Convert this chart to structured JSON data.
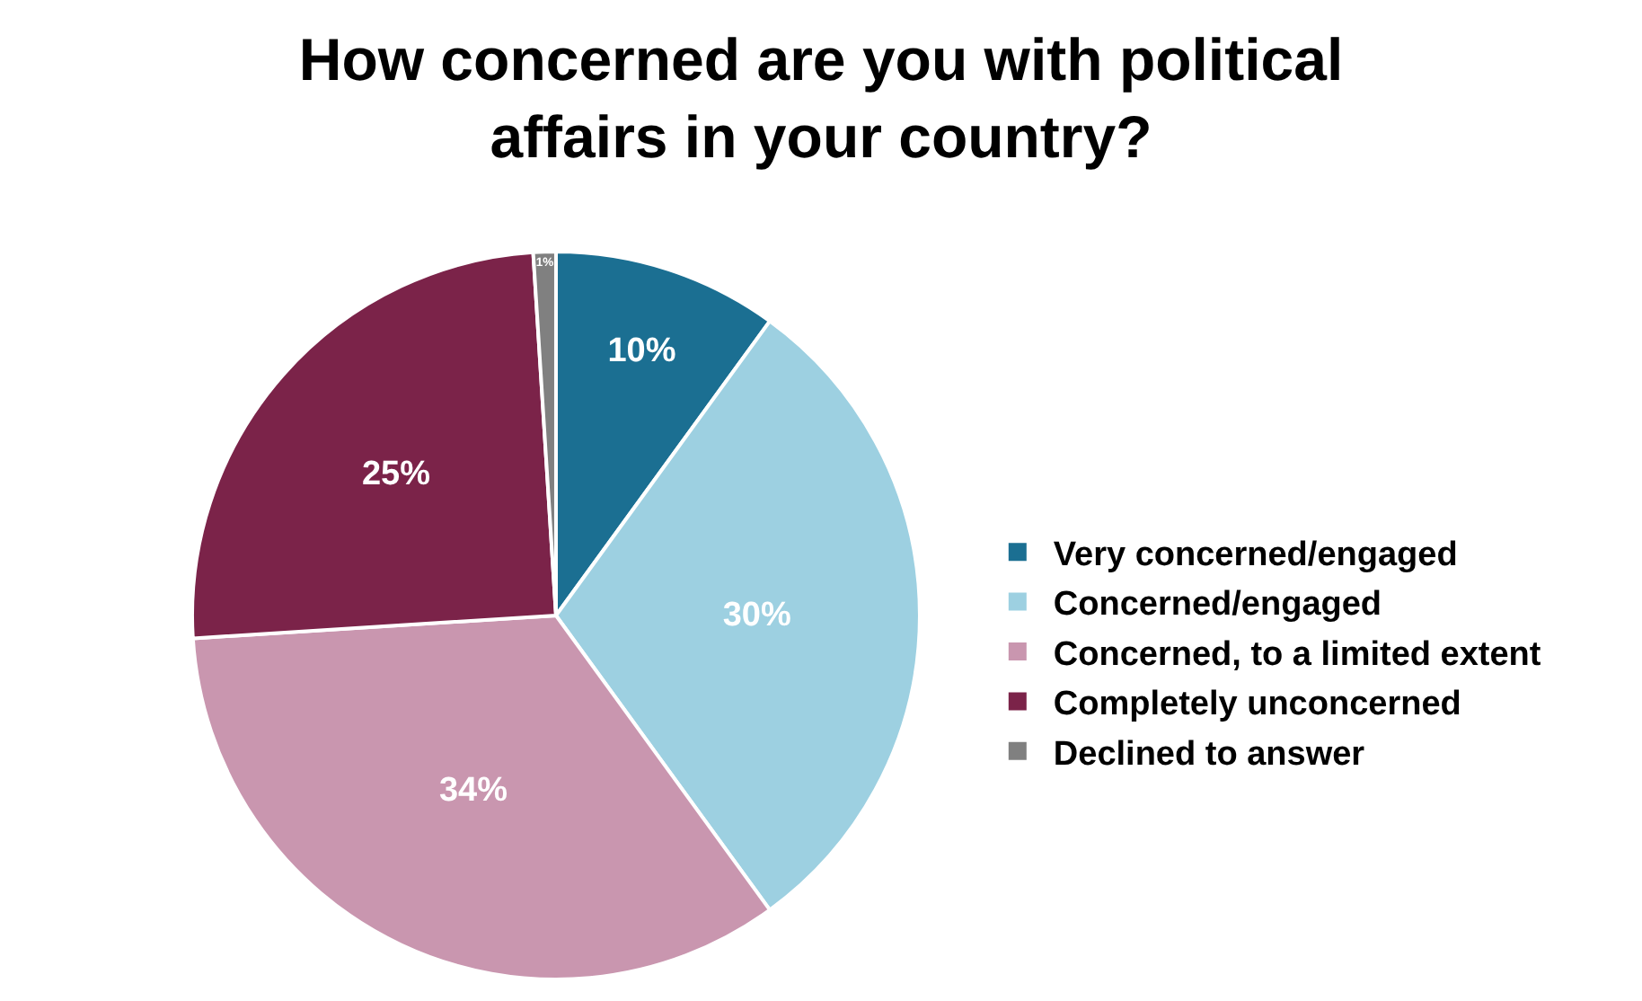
{
  "chart_data": {
    "type": "pie",
    "title": "How concerned are you with political affairs in your country?",
    "categories": [
      "Very concerned/engaged",
      "Concerned/engaged",
      "Concerned, to a limited extent",
      "Completely unconcerned",
      "Declined to answer"
    ],
    "values": [
      10,
      30,
      34,
      25,
      1
    ],
    "value_labels": [
      "10%",
      "30%",
      "34%",
      "25%",
      "1%"
    ],
    "colors": [
      "#1b6f92",
      "#9dd0e1",
      "#c996af",
      "#7b2349",
      "#808080"
    ],
    "legend": "right"
  }
}
